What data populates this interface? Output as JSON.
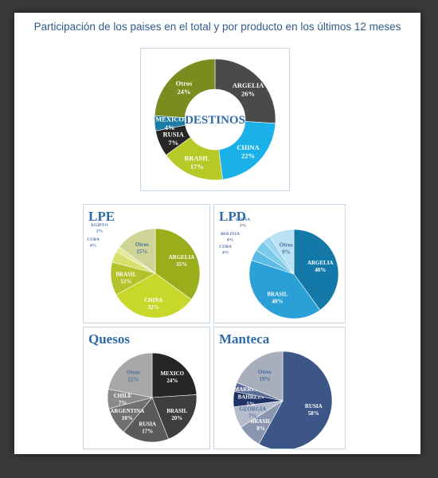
{
  "header": {
    "title": "Participación de los paises en el total y por producto en los últimos 12 meses"
  },
  "chart_data": [
    {
      "type": "pie",
      "donut": true,
      "title": "DESTINOS",
      "slices": [
        {
          "label": "ARGELIA",
          "value": 26,
          "text": "26%",
          "color": "#4a4a4a"
        },
        {
          "label": "CHINA",
          "value": 22,
          "text": "22%",
          "color": "#1ab0e8"
        },
        {
          "label": "BRASIL",
          "value": 17,
          "text": "17%",
          "color": "#b7c926"
        },
        {
          "label": "RUSIA",
          "value": 7,
          "text": "7%",
          "color": "#262626"
        },
        {
          "label": "MEXICO",
          "value": 4,
          "text": "4%",
          "color": "#1c7ca6"
        },
        {
          "label": "Otros",
          "value": 24,
          "text": "24%",
          "color": "#7a8c1e"
        }
      ]
    },
    {
      "type": "pie",
      "title": "LPE",
      "slices": [
        {
          "label": "ARGELIA",
          "value": 35,
          "text": "35%",
          "color": "#9aae1c"
        },
        {
          "label": "CHINA",
          "value": 32,
          "text": "32%",
          "color": "#c8d82a"
        },
        {
          "label": "BRASIL",
          "value": 12,
          "text": "12%",
          "color": "#b3c12a"
        },
        {
          "label": "CUBA",
          "value": 4,
          "text": "4%",
          "color": "#d6e06a"
        },
        {
          "label": "EGIPTO",
          "value": 2,
          "text": "2%",
          "color": "#e2ea9a"
        },
        {
          "label": "Otros",
          "value": 15,
          "text": "15%",
          "color": "#cfd596"
        }
      ]
    },
    {
      "type": "pie",
      "title": "LPD",
      "slices": [
        {
          "label": "ARGELIA",
          "value": 40,
          "text": "40%",
          "color": "#1479a8"
        },
        {
          "label": "BRASIL",
          "value": 40,
          "text": "40%",
          "color": "#2aa0d6"
        },
        {
          "label": "CUBA",
          "value": 4,
          "text": "4%",
          "color": "#5cbce6"
        },
        {
          "label": "BOLIVIA",
          "value": 4,
          "text": "4%",
          "color": "#7acaea"
        },
        {
          "label": "CHINA",
          "value": 3,
          "text": "3%",
          "color": "#9ad6ef"
        },
        {
          "label": "Otros",
          "value": 9,
          "text": "9%",
          "color": "#b8e2f4"
        }
      ]
    },
    {
      "type": "pie",
      "title": "Quesos",
      "slices": [
        {
          "label": "MEXICO",
          "value": 24,
          "text": "24%",
          "color": "#262626"
        },
        {
          "label": "BRASIL",
          "value": 20,
          "text": "20%",
          "color": "#3e3e3e"
        },
        {
          "label": "RUSIA",
          "value": 17,
          "text": "17%",
          "color": "#5a5a5a"
        },
        {
          "label": "ARGENTINA",
          "value": 10,
          "text": "10%",
          "color": "#707070"
        },
        {
          "label": "CHILE",
          "value": 7,
          "text": "7%",
          "color": "#8a8a8a"
        },
        {
          "label": "Otros",
          "value": 22,
          "text": "22%",
          "color": "#a8a8a8"
        }
      ]
    },
    {
      "type": "pie",
      "title": "Manteca",
      "slices": [
        {
          "label": "RUSIA",
          "value": 58,
          "text": "58%",
          "color": "#3d5688"
        },
        {
          "label": "BRASIL",
          "value": 8,
          "text": "8%",
          "color": "#8a96b0"
        },
        {
          "label": "GEORGIA",
          "value": 7,
          "text": "7%",
          "color": "#b6bccb"
        },
        {
          "label": "BAHREIN",
          "value": 5,
          "text": "5%",
          "color": "#1e3264"
        },
        {
          "label": "MARRUECOS",
          "value": 3,
          "text": "",
          "color": "#5a6e98"
        },
        {
          "label": "Otros",
          "value": 19,
          "text": "19%",
          "color": "#a9aebd"
        }
      ]
    }
  ]
}
